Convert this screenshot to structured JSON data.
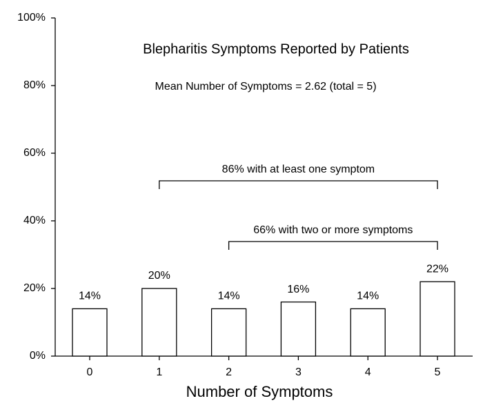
{
  "chart_data": {
    "type": "bar",
    "title": "Blepharitis Symptoms Reported by Patients",
    "subtitle": "Mean Number of Symptoms = 2.62 (total = 5)",
    "x_label": "Number of Symptoms",
    "categories": [
      "0",
      "1",
      "2",
      "3",
      "4",
      "5"
    ],
    "values": [
      14,
      20,
      14,
      16,
      14,
      22
    ],
    "value_labels": [
      "14%",
      "20%",
      "14%",
      "16%",
      "14%",
      "22%"
    ],
    "color": "#ffffff",
    "ylim": [
      0,
      100
    ],
    "yticks": [
      {
        "value": 0,
        "label": "0%"
      },
      {
        "value": 20,
        "label": "20%"
      },
      {
        "value": 40,
        "label": "40%"
      },
      {
        "value": 60,
        "label": "60%"
      },
      {
        "value": 80,
        "label": "80%"
      },
      {
        "value": 100,
        "label": "100%"
      }
    ],
    "grid": false,
    "annotations": [
      {
        "text": "86% with at least one symptom",
        "from_category": "1",
        "to_category": "5"
      },
      {
        "text": "66% with two or more symptoms",
        "from_category": "2",
        "to_category": "5"
      }
    ]
  }
}
